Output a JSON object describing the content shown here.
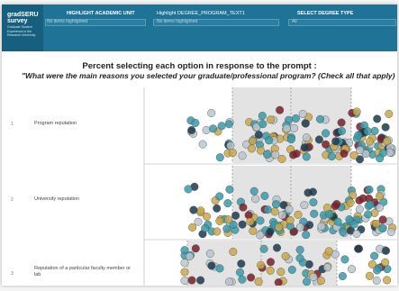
{
  "header": {
    "logo": {
      "line1": "gradSERU",
      "line2": "survey",
      "subtitle": "Graduate Student Experience in the Research University"
    },
    "unit_label": "HIGHLIGHT ACADEMIC UNIT",
    "unit_value": "No items highlighted",
    "program_label": "Highlight DEGREE_PROGRAM_TEXT1",
    "program_value": "No items highlighted",
    "degree_label": "SELECT DEGREE TYPE",
    "degree_value": "All"
  },
  "titles": {
    "line1": "Percent selecting each option in response to the prompt :",
    "line2": "\"What were the main reasons you selected your graduate/professional program? (Check all that apply)"
  },
  "chart_data": {
    "type": "scatter",
    "categories": [
      {
        "num": "1",
        "label": "Program reputation"
      },
      {
        "num": "2",
        "label": "University reputation"
      },
      {
        "num": "3",
        "label": "Reputation of a particular faculty member or lab"
      }
    ],
    "colors": {
      "teal": "#3a9aa8",
      "gold": "#c9a84a",
      "navy": "#1c3a4e",
      "maroon": "#7a1e2a",
      "light": "#b8c6cf",
      "band": "#e3e3e3"
    }
  }
}
